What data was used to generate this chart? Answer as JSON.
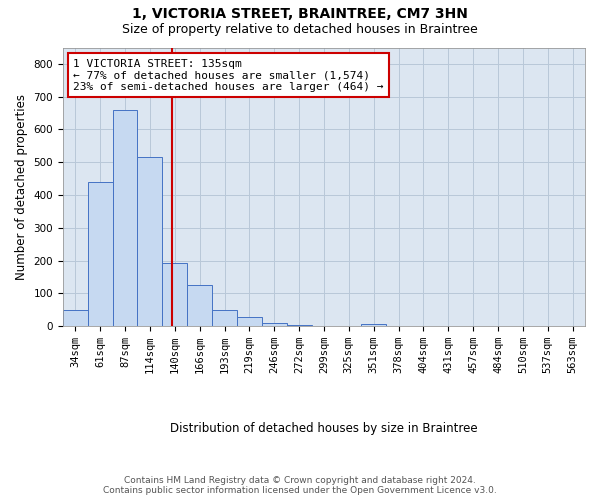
{
  "title_line1": "1, VICTORIA STREET, BRAINTREE, CM7 3HN",
  "title_line2": "Size of property relative to detached houses in Braintree",
  "xlabel": "Distribution of detached houses by size in Braintree",
  "ylabel": "Number of detached properties",
  "bar_labels": [
    "34sqm",
    "61sqm",
    "87sqm",
    "114sqm",
    "140sqm",
    "166sqm",
    "193sqm",
    "219sqm",
    "246sqm",
    "272sqm",
    "299sqm",
    "325sqm",
    "351sqm",
    "378sqm",
    "404sqm",
    "431sqm",
    "457sqm",
    "484sqm",
    "510sqm",
    "537sqm",
    "563sqm"
  ],
  "bar_values": [
    50,
    440,
    660,
    515,
    193,
    125,
    50,
    27,
    10,
    5,
    2,
    2,
    8,
    0,
    0,
    0,
    0,
    0,
    0,
    0,
    0
  ],
  "bar_color": "#c6d9f1",
  "bar_edge_color": "#4472c4",
  "grid_color": "#b8c8d8",
  "plot_bg_color": "#dce6f1",
  "vline_color": "#cc0000",
  "vline_pos": 3.88,
  "annotation_text": "1 VICTORIA STREET: 135sqm\n← 77% of detached houses are smaller (1,574)\n23% of semi-detached houses are larger (464) →",
  "annotation_box_color": "#ffffff",
  "annotation_box_edge": "#cc0000",
  "ylim": [
    0,
    850
  ],
  "yticks": [
    0,
    100,
    200,
    300,
    400,
    500,
    600,
    700,
    800
  ],
  "footer_line1": "Contains HM Land Registry data © Crown copyright and database right 2024.",
  "footer_line2": "Contains public sector information licensed under the Open Government Licence v3.0.",
  "title_fontsize": 10,
  "subtitle_fontsize": 9,
  "axis_label_fontsize": 8.5,
  "tick_fontsize": 7.5,
  "annotation_fontsize": 8,
  "footer_fontsize": 6.5
}
